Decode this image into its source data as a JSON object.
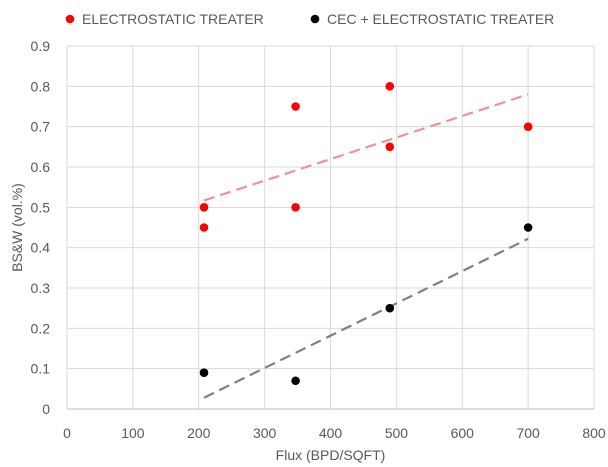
{
  "chart_data": {
    "type": "scatter",
    "title": "",
    "xlabel": "Flux (BPD/SQFT)",
    "ylabel": "BS&W (vol.%)",
    "xlim": [
      0,
      800
    ],
    "ylim": [
      0,
      0.9
    ],
    "xticks": [
      0,
      100,
      200,
      300,
      400,
      500,
      600,
      700,
      800
    ],
    "yticks": [
      0,
      0.1,
      0.2,
      0.3,
      0.4,
      0.5,
      0.6,
      0.7,
      0.8,
      0.9
    ],
    "xtick_labels": [
      "0",
      "100",
      "200",
      "300",
      "400",
      "500",
      "600",
      "700",
      "800"
    ],
    "ytick_labels": [
      "0",
      "0.1",
      "0.2",
      "0.3",
      "0.4",
      "0.5",
      "0.6",
      "0.7",
      "0.8",
      "0.9"
    ],
    "grid": true,
    "legend_position": "top",
    "series": [
      {
        "name": "ELECTROSTATIC TREATER",
        "color": "#ff0000",
        "trend_color": "#f4918b",
        "points": [
          {
            "x": 208,
            "y": 0.5
          },
          {
            "x": 208,
            "y": 0.45
          },
          {
            "x": 347,
            "y": 0.75
          },
          {
            "x": 347,
            "y": 0.5
          },
          {
            "x": 490,
            "y": 0.8
          },
          {
            "x": 490,
            "y": 0.65
          },
          {
            "x": 700,
            "y": 0.7
          }
        ],
        "trendline": {
          "x": [
            208,
            700
          ],
          "y": [
            0.517,
            0.78
          ]
        }
      },
      {
        "name": "CEC + ELECTROSTATIC TREATER",
        "color": "#000000",
        "trend_color": "#808080",
        "points": [
          {
            "x": 208,
            "y": 0.09
          },
          {
            "x": 347,
            "y": 0.07
          },
          {
            "x": 490,
            "y": 0.25
          },
          {
            "x": 700,
            "y": 0.45
          }
        ],
        "trendline": {
          "x": [
            208,
            700
          ],
          "y": [
            0.028,
            0.422
          ]
        }
      }
    ]
  }
}
